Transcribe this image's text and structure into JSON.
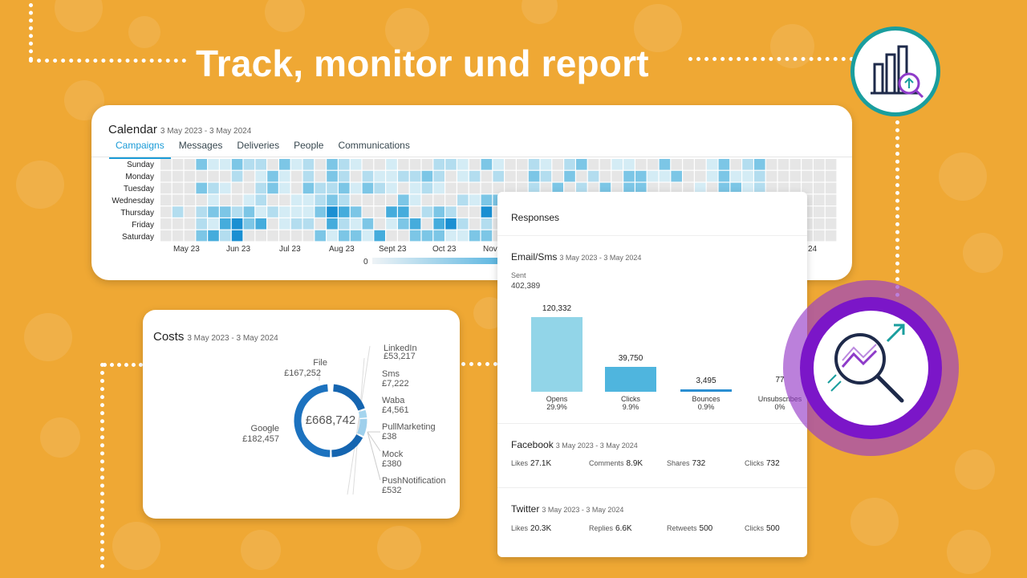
{
  "title": "Track, monitor und report",
  "calendar": {
    "title": "Calendar",
    "date_range": "3 May 2023 - 3 May 2024",
    "tabs": [
      "Campaigns",
      "Messages",
      "Deliveries",
      "People",
      "Communications"
    ],
    "active_tab": "Campaigns",
    "days": [
      "Sunday",
      "Monday",
      "Tuesday",
      "Wednesday",
      "Thursday",
      "Friday",
      "Saturday"
    ],
    "months": [
      "May 23",
      "Jun 23",
      "Jul 23",
      "Aug 23",
      "Sept 23",
      "Oct 23",
      "Nov",
      "24"
    ],
    "legend_min": "0"
  },
  "costs": {
    "title": "Costs",
    "date_range": "3 May 2023 - 3 May 2024",
    "total": "£668,742",
    "items": [
      {
        "name": "File",
        "value": "£167,252"
      },
      {
        "name": "LinkedIn",
        "value": "£53,217"
      },
      {
        "name": "Sms",
        "value": "£7,222"
      },
      {
        "name": "Waba",
        "value": "£4,561"
      },
      {
        "name": "PullMarketing",
        "value": "£38"
      },
      {
        "name": "Mock",
        "value": "£380"
      },
      {
        "name": "PushNotification",
        "value": "£532"
      },
      {
        "name": "Google",
        "value": "£182,457"
      }
    ]
  },
  "responses": {
    "title": "Responses",
    "email": {
      "title": "Email/Sms",
      "date_range": "3 May 2023 - 3 May 2024",
      "sent_label": "Sent",
      "sent_value": "402,389",
      "bars": [
        {
          "label": "Opens",
          "value": "120,332",
          "pct": "29.9%",
          "color": "#92d5e8"
        },
        {
          "label": "Clicks",
          "value": "39,750",
          "pct": "9.9%",
          "color": "#4fb5de"
        },
        {
          "label": "Bounces",
          "value": "3,495",
          "pct": "0.9%",
          "color": "#2a8fd2"
        },
        {
          "label": "Unsubscribes",
          "value": "77",
          "pct": "0%",
          "color": "#2a6fb8"
        }
      ]
    },
    "facebook": {
      "title": "Facebook",
      "date_range": "3 May 2023 - 3 May 2024",
      "stats": [
        {
          "label": "Likes",
          "value": "27.1K"
        },
        {
          "label": "Comments",
          "value": "8.9K"
        },
        {
          "label": "Shares",
          "value": "732"
        },
        {
          "label": "Clicks",
          "value": "732"
        }
      ]
    },
    "twitter": {
      "title": "Twitter",
      "date_range": "3 May 2023 - 3 May 2024",
      "stats": [
        {
          "label": "Likes",
          "value": "20.3K"
        },
        {
          "label": "Replies",
          "value": "6.6K"
        },
        {
          "label": "Retweets",
          "value": "500"
        },
        {
          "label": "Clicks",
          "value": "500"
        }
      ]
    }
  },
  "colors": {
    "background": "#efa834",
    "accent": "#1a9bd7",
    "teal": "#1a9e9e",
    "purple": "#7b16c8"
  }
}
